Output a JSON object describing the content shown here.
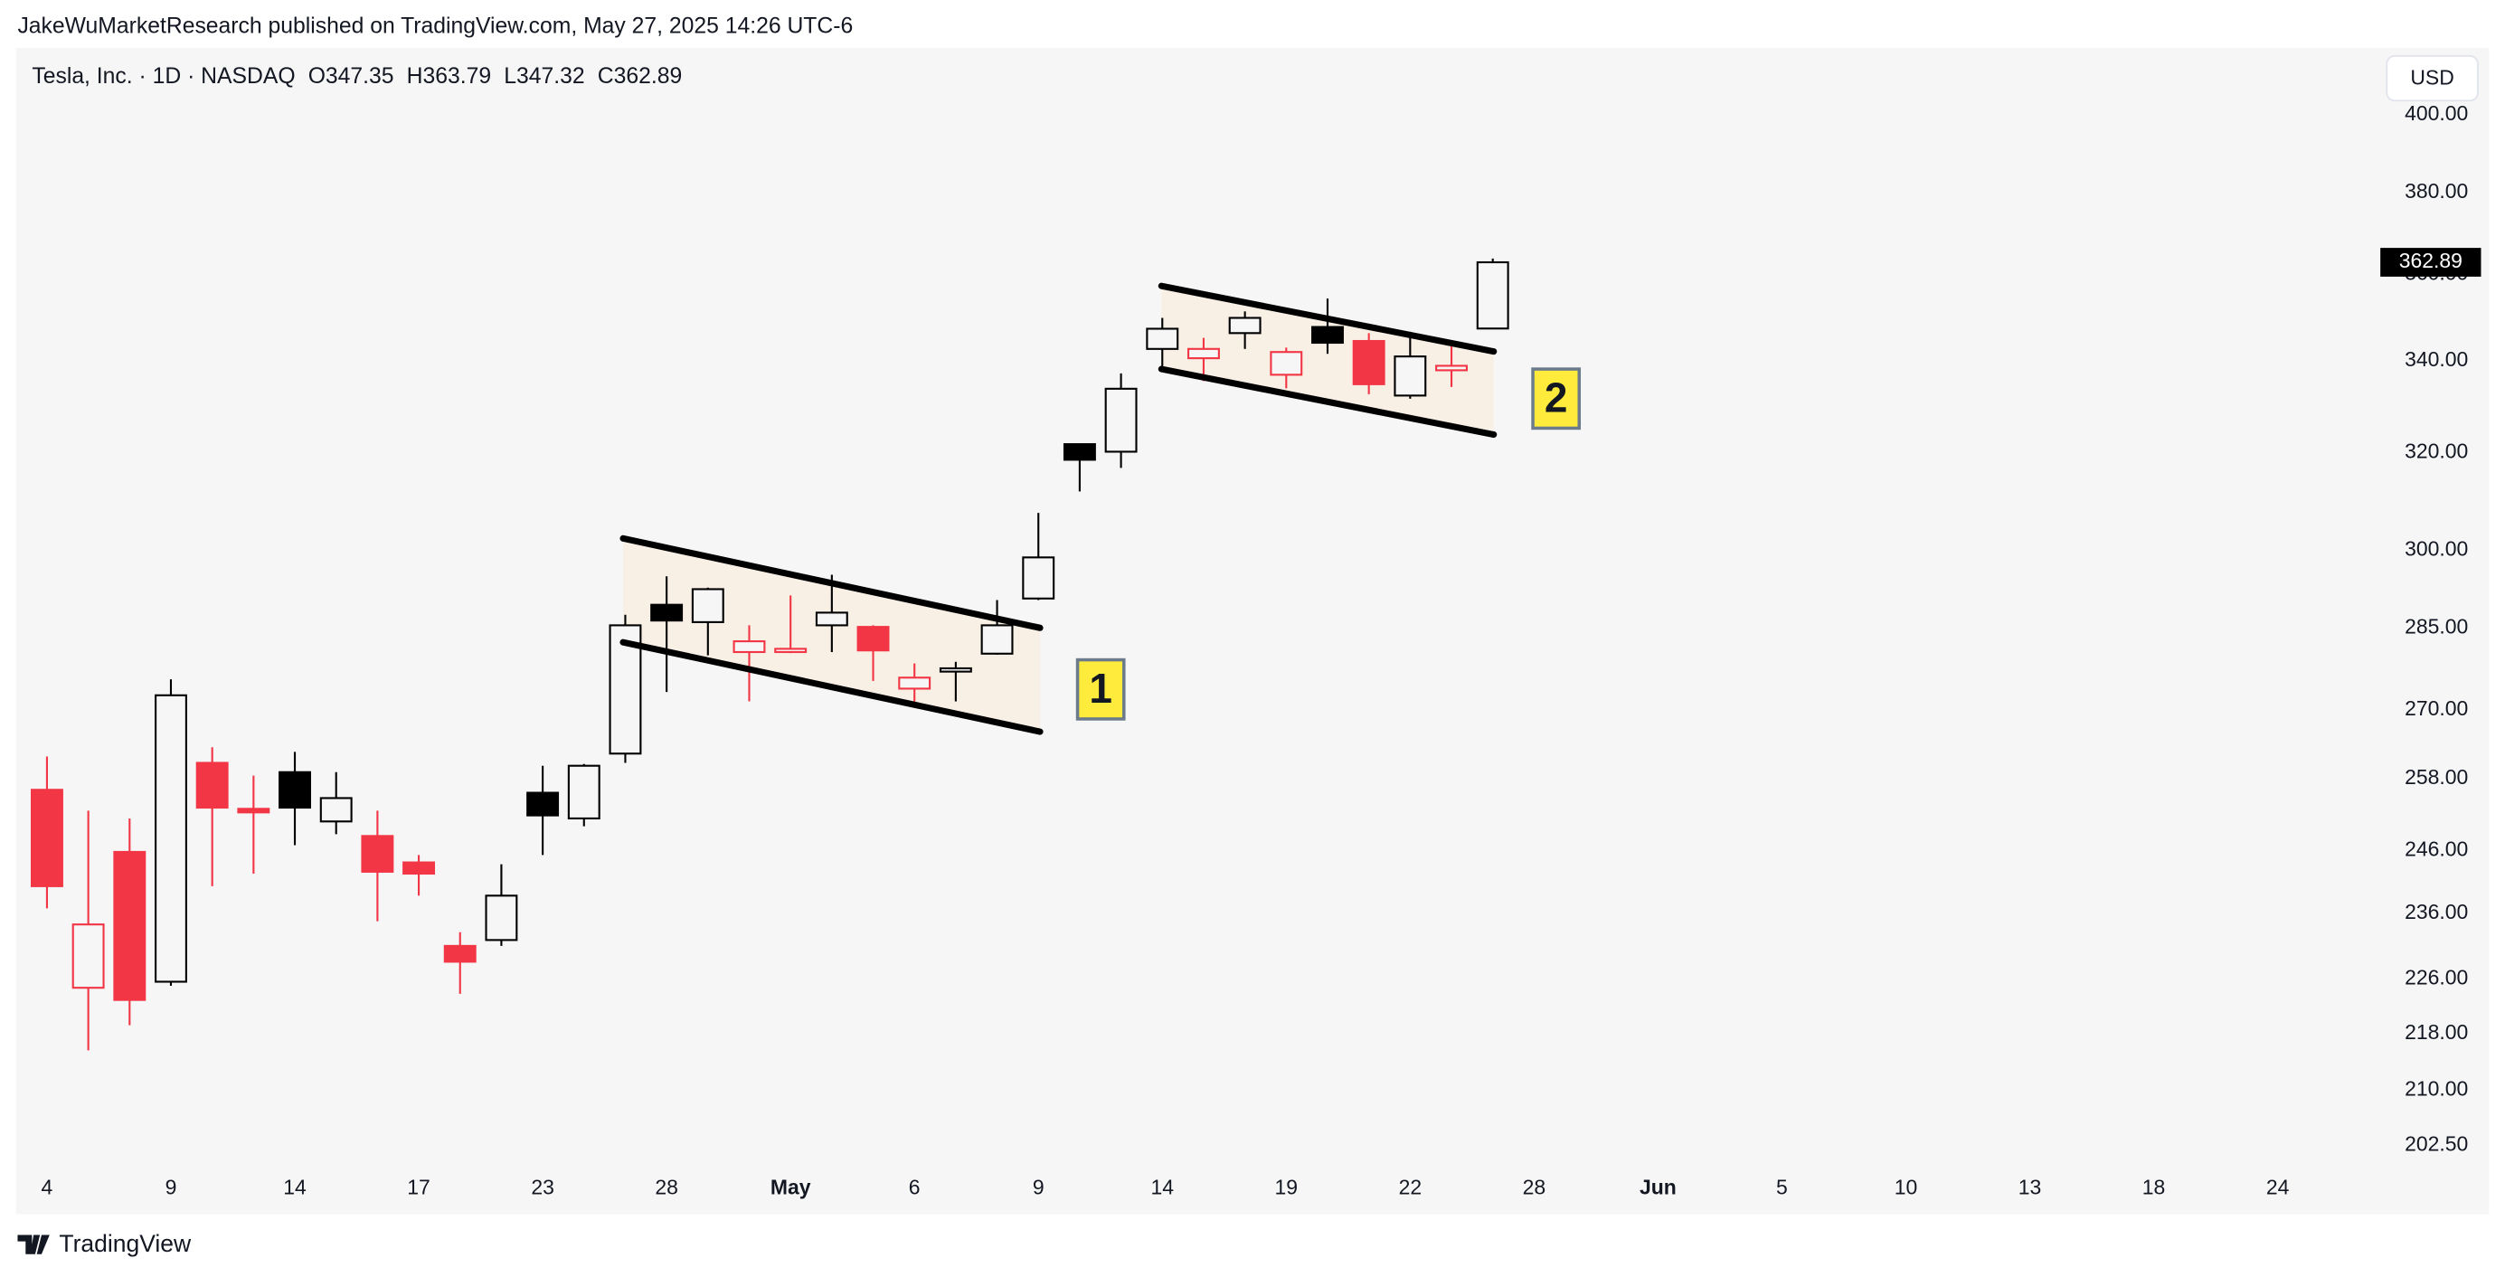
{
  "header": {
    "publisher": "JakeWuMarketResearch published on TradingView.com, May 27, 2025 14:26 UTC-6"
  },
  "currency": "USD",
  "footer": "TradingView",
  "chart_data": {
    "type": "candlestick",
    "title": "Tesla, Inc. · 1D · NASDAQ",
    "ohlc_labels": [
      "O",
      "H",
      "L",
      "C"
    ],
    "x": [
      0,
      1,
      2,
      3,
      4,
      5,
      6,
      7,
      8,
      9,
      10,
      11,
      12,
      13,
      14,
      15,
      16,
      17,
      18,
      19,
      20,
      21,
      22,
      23,
      24,
      25,
      26,
      27,
      28,
      29,
      30,
      31,
      32,
      33,
      34,
      35
    ],
    "open": [
      256.1,
      224.7,
      245.8,
      225.6,
      260.7,
      252.9,
      259.1,
      250.8,
      248.4,
      244.1,
      231.0,
      231.9,
      255.6,
      251.3,
      262.3,
      289.4,
      286.1,
      280.5,
      280.5,
      285.5,
      285.2,
      273.8,
      276.9,
      280.2,
      290.6,
      321.8,
      320.2,
      342.7,
      340.6,
      346.3,
      336.9,
      347.7,
      344.5,
      332.3,
      337.9,
      347.35
    ],
    "high": [
      261.8,
      252.6,
      251.3,
      275.5,
      263.4,
      258.5,
      262.6,
      259.1,
      252.6,
      245.3,
      233.1,
      243.8,
      260.2,
      260.5,
      287.5,
      294.9,
      292.7,
      285.5,
      291.2,
      295.2,
      285.5,
      278.4,
      278.7,
      290.3,
      307.5,
      321.9,
      337.2,
      349.8,
      345.2,
      351.3,
      343.0,
      354.3,
      346.3,
      346.6,
      344.1,
      363.79
    ],
    "low": [
      236.8,
      215.6,
      219.2,
      225.0,
      240.3,
      242.3,
      246.9,
      248.7,
      234.8,
      238.8,
      223.8,
      231.0,
      245.3,
      250.0,
      260.7,
      273.2,
      279.9,
      271.5,
      280.3,
      280.5,
      275.2,
      271.5,
      271.5,
      280.0,
      290.3,
      311.9,
      316.8,
      337.9,
      335.5,
      342.7,
      333.9,
      341.6,
      332.6,
      331.6,
      334.2,
      347.32
    ],
    "close": [
      240.3,
      234.3,
      222.9,
      272.6,
      253.1,
      252.3,
      253.1,
      254.7,
      242.6,
      242.3,
      228.6,
      238.8,
      251.8,
      260.2,
      285.5,
      286.4,
      292.4,
      282.5,
      281.1,
      287.9,
      280.8,
      275.8,
      277.5,
      285.5,
      298.6,
      318.5,
      333.8,
      347.3,
      342.7,
      349.8,
      342.0,
      344.1,
      334.8,
      341.0,
      338.9,
      362.89
    ],
    "up_color": "#000000",
    "down_color": "#f23645",
    "log_scale": true,
    "grid": false,
    "xlim": [
      -0.75,
      56.1
    ],
    "xticks": [
      {
        "value": 0,
        "label": "4"
      },
      {
        "value": 3,
        "label": "9"
      },
      {
        "value": 6,
        "label": "14"
      },
      {
        "value": 9,
        "label": "17"
      },
      {
        "value": 12,
        "label": "23"
      },
      {
        "value": 15,
        "label": "28"
      },
      {
        "value": 18,
        "label": "May"
      },
      {
        "value": 21,
        "label": "6"
      },
      {
        "value": 24,
        "label": "9"
      },
      {
        "value": 27,
        "label": "14"
      },
      {
        "value": 30,
        "label": "19"
      },
      {
        "value": 33,
        "label": "22"
      },
      {
        "value": 36,
        "label": "28"
      },
      {
        "value": 39,
        "label": "Jun"
      },
      {
        "value": 42,
        "label": "5"
      },
      {
        "value": 45,
        "label": "10"
      },
      {
        "value": 48,
        "label": "13"
      },
      {
        "value": 51,
        "label": "18"
      },
      {
        "value": 54,
        "label": "24"
      }
    ],
    "ylim": [
      199.7,
      418.1
    ],
    "yticks": [
      {
        "value": 202.5,
        "label": "202.50"
      },
      {
        "value": 210,
        "label": "210.00"
      },
      {
        "value": 218,
        "label": "218.00"
      },
      {
        "value": 226,
        "label": "226.00"
      },
      {
        "value": 236,
        "label": "236.00"
      },
      {
        "value": 246,
        "label": "246.00"
      },
      {
        "value": 258,
        "label": "258.00"
      },
      {
        "value": 270,
        "label": "270.00"
      },
      {
        "value": 285,
        "label": "285.00"
      },
      {
        "value": 300,
        "label": "300.00"
      },
      {
        "value": 320,
        "label": "320.00"
      },
      {
        "value": 340,
        "label": "340.00"
      },
      {
        "value": 360,
        "label": "360.00"
      },
      {
        "value": 380,
        "label": "380.00"
      },
      {
        "value": 400,
        "label": "400.00"
      }
    ],
    "annotations": [
      "1",
      "2"
    ]
  }
}
